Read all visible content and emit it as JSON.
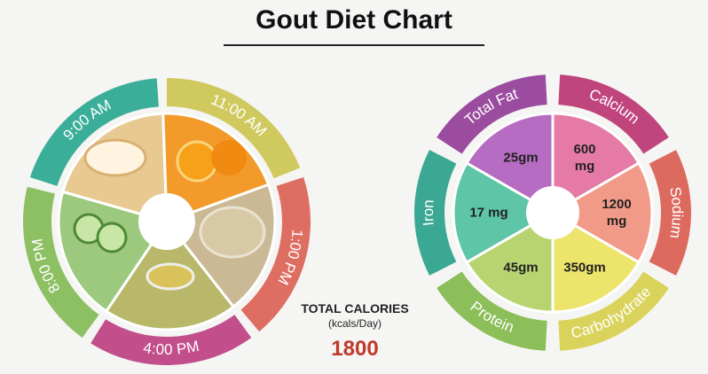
{
  "title": "Gout Diet Chart",
  "meal_times": [
    "9:00 AM",
    "11:00 AM",
    "1:00 PM",
    "4:00 PM",
    "8:00 PM"
  ],
  "total_calories": {
    "label": "TOTAL CALORIES",
    "unit": "(kcals/Day)",
    "value": "1800"
  },
  "nutrients": [
    {
      "name": "Total Fat",
      "amount": "25gm"
    },
    {
      "name": "Calcium",
      "amount": "600 mg"
    },
    {
      "name": "Sodium",
      "amount": "1200 mg"
    },
    {
      "name": "Carbohydrate",
      "amount": "350gm"
    },
    {
      "name": "Protein",
      "amount": "45gm"
    },
    {
      "name": "Iron",
      "amount": "17 mg"
    }
  ]
}
